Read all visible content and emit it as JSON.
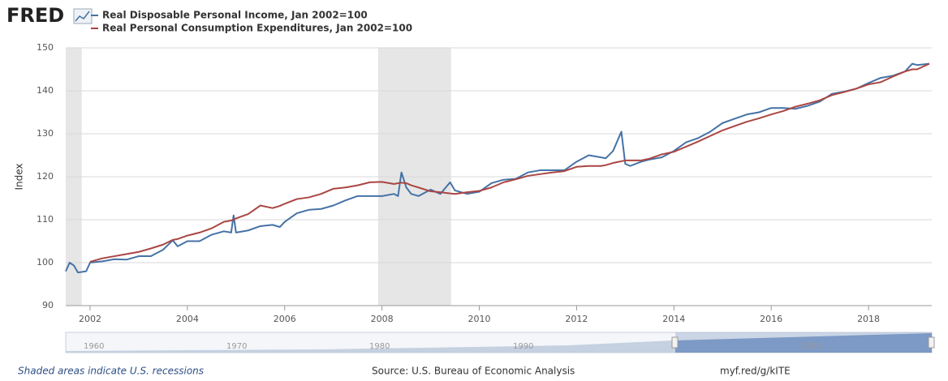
{
  "chart_data": {
    "type": "line",
    "logo": "FRED",
    "ylabel": "Index",
    "x": [
      2001.5,
      2001.58,
      2001.67,
      2001.75,
      2001.92,
      2002.0,
      2002.25,
      2002.5,
      2002.75,
      2003.0,
      2003.25,
      2003.5,
      2003.7,
      2003.8,
      2004.0,
      2004.25,
      2004.5,
      2004.75,
      2004.9,
      2004.95,
      2005.0,
      2005.25,
      2005.5,
      2005.75,
      2005.9,
      2006.0,
      2006.25,
      2006.5,
      2006.75,
      2007.0,
      2007.25,
      2007.5,
      2007.75,
      2008.0,
      2008.25,
      2008.33,
      2008.4,
      2008.5,
      2008.6,
      2008.75,
      2009.0,
      2009.2,
      2009.4,
      2009.5,
      2009.75,
      2010.0,
      2010.25,
      2010.5,
      2010.75,
      2011.0,
      2011.25,
      2011.5,
      2011.75,
      2012.0,
      2012.25,
      2012.5,
      2012.6,
      2012.75,
      2012.92,
      2013.0,
      2013.1,
      2013.33,
      2013.5,
      2013.75,
      2014.0,
      2014.25,
      2014.5,
      2014.75,
      2015.0,
      2015.25,
      2015.5,
      2015.75,
      2016.0,
      2016.25,
      2016.5,
      2016.75,
      2017.0,
      2017.25,
      2017.5,
      2017.75,
      2018.0,
      2018.25,
      2018.5,
      2018.75,
      2018.9,
      2019.0,
      2019.25
    ],
    "series": [
      {
        "name": "Real Disposable Personal Income, Jan 2002=100",
        "color": "#4572a7",
        "values": [
          98,
          100,
          99.3,
          97.7,
          98,
          100,
          100.3,
          100.8,
          100.7,
          101.5,
          101.5,
          103,
          105.2,
          103.8,
          105,
          105,
          106.5,
          107.3,
          107,
          111,
          107,
          107.5,
          108.5,
          108.8,
          108.3,
          109.5,
          111.5,
          112.3,
          112.5,
          113.3,
          114.5,
          115.5,
          115.5,
          115.5,
          116,
          115.5,
          121,
          117.5,
          116,
          115.5,
          117,
          116,
          118.7,
          116.8,
          116,
          116.5,
          118.5,
          119.3,
          119.5,
          121,
          121.5,
          121.5,
          121.5,
          123.5,
          125,
          124.5,
          124.3,
          126,
          130.5,
          123,
          122.5,
          123.5,
          124,
          124.5,
          126,
          128,
          129,
          130.5,
          132.5,
          133.5,
          134.5,
          135,
          136,
          136,
          135.8,
          136.5,
          137.5,
          139.3,
          139.8,
          140.5,
          141.8,
          143,
          143.5,
          144.5,
          146.3,
          146,
          146.3
        ]
      },
      {
        "name": "Real Personal Consumption Expenditures, Jan 2002=100",
        "color": "#aa4643",
        "values": [
          null,
          null,
          null,
          null,
          null,
          100.2,
          101,
          101.5,
          102,
          102.5,
          103.3,
          104.2,
          105.3,
          105.5,
          106.3,
          107,
          108,
          109.5,
          109.8,
          110,
          110.3,
          111.3,
          113.3,
          112.7,
          113.2,
          113.7,
          114.8,
          115.2,
          116,
          117.2,
          117.5,
          118,
          118.7,
          118.8,
          118.3,
          118.5,
          118.6,
          118.5,
          118,
          117.5,
          116.6,
          116.4,
          116.1,
          116,
          116.4,
          116.7,
          117.5,
          118.7,
          119.4,
          120.2,
          120.6,
          121,
          121.3,
          122.3,
          122.5,
          122.5,
          122.7,
          123.2,
          123.6,
          123.8,
          123.8,
          123.8,
          124.2,
          125.2,
          125.8,
          127,
          128.2,
          129.5,
          130.8,
          131.8,
          132.8,
          133.6,
          134.5,
          135.3,
          136.3,
          137,
          137.8,
          139,
          139.7,
          140.5,
          141.5,
          142,
          143.3,
          144.5,
          145,
          145,
          146.3
        ]
      }
    ],
    "recessions": [
      [
        2001.5,
        2001.83
      ],
      [
        2007.92,
        2009.42
      ]
    ],
    "xlim": [
      2001.5,
      2019.3
    ],
    "xticks": [
      2002,
      2004,
      2006,
      2008,
      2010,
      2012,
      2014,
      2016,
      2018
    ],
    "ylim": [
      90,
      150
    ],
    "yticks": [
      90,
      100,
      110,
      120,
      130,
      140,
      150
    ],
    "grid": true,
    "navigator_labels": [
      "1960",
      "1970",
      "1980",
      "1990",
      "2010"
    ],
    "footer_left": "Shaded areas indicate U.S. recessions",
    "footer_source": "Source: U.S. Bureau of Economic Analysis",
    "footer_link": "myf.red/g/kITE"
  }
}
